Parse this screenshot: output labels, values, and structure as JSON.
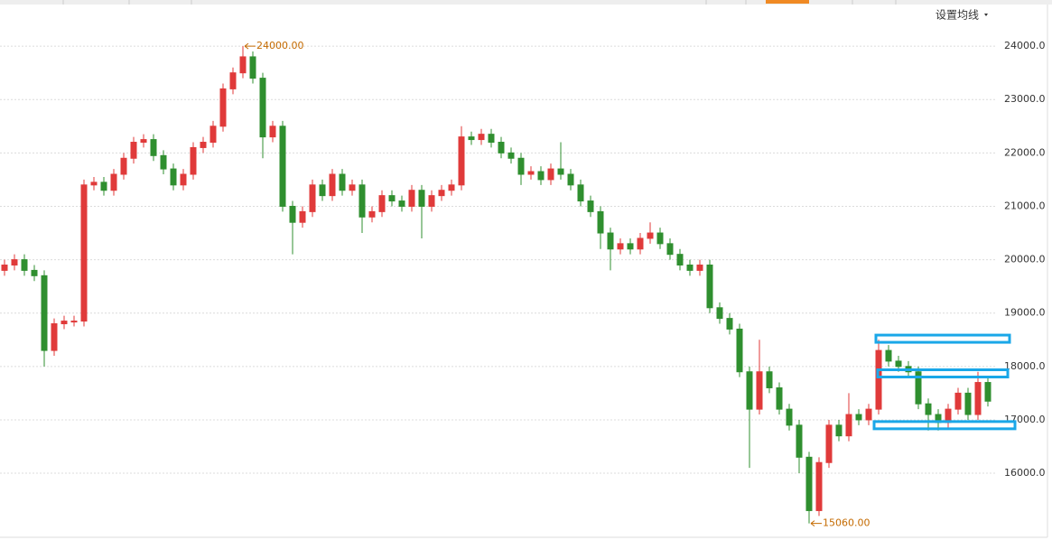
{
  "chart_data": {
    "type": "candlestick",
    "menu_label": "设置均线",
    "open": [
      19800,
      19900,
      20000,
      19800,
      19700,
      18300,
      18800,
      18850,
      18850,
      21400,
      21450,
      21300,
      21600,
      21900,
      22200,
      22250,
      21950,
      21700,
      21400,
      21600,
      22100,
      22200,
      22500,
      23200,
      23500,
      23800,
      23400,
      22300,
      22500,
      21000,
      20700,
      20900,
      21400,
      21200,
      21600,
      21300,
      21400,
      20800,
      20900,
      21200,
      21100,
      21000,
      21300,
      21000,
      21200,
      21300,
      21400,
      22300,
      22250,
      22350,
      22200,
      22000,
      21900,
      21600,
      21650,
      21500,
      21700,
      21600,
      21400,
      21100,
      20900,
      20500,
      20200,
      20300,
      20200,
      20400,
      20500,
      20300,
      20100,
      19900,
      19800,
      19900,
      19100,
      18900,
      18700,
      17900,
      17200,
      17900,
      17600,
      17200,
      16900,
      16300,
      15300,
      16200,
      16900,
      16700,
      17100,
      17000,
      17200,
      18300,
      18100,
      18000,
      17900,
      17300,
      17100,
      16950,
      17200,
      17500,
      17100,
      17700
    ],
    "high": [
      20000,
      20100,
      20100,
      19900,
      19800,
      18900,
      18950,
      18950,
      21500,
      21550,
      21550,
      21700,
      22000,
      22300,
      22350,
      22350,
      22050,
      21800,
      21700,
      22200,
      22300,
      22600,
      23300,
      23600,
      24000,
      23900,
      23500,
      22600,
      22600,
      21100,
      21000,
      21500,
      21500,
      21700,
      21700,
      21500,
      21500,
      21000,
      21300,
      21300,
      21200,
      21400,
      21400,
      21300,
      21400,
      21500,
      22500,
      22400,
      22450,
      22450,
      22300,
      22100,
      22000,
      21750,
      21750,
      21800,
      22200,
      21700,
      21500,
      21200,
      21000,
      20600,
      20400,
      20400,
      20500,
      20700,
      20600,
      20400,
      20200,
      20000,
      20000,
      20000,
      19200,
      19000,
      18800,
      18000,
      18500,
      18000,
      17700,
      17300,
      17000,
      16400,
      16300,
      17000,
      17000,
      17500,
      17200,
      17300,
      18500,
      18400,
      18200,
      18100,
      18000,
      17400,
      17200,
      17300,
      17600,
      17600,
      17900,
      17800
    ],
    "low": [
      19700,
      19800,
      19700,
      19600,
      18000,
      18200,
      18700,
      18750,
      18750,
      21300,
      21200,
      21200,
      21500,
      21800,
      22100,
      21850,
      21600,
      21300,
      21300,
      21500,
      22000,
      22100,
      22400,
      23100,
      23400,
      23300,
      21900,
      22200,
      20900,
      20100,
      20600,
      20800,
      21100,
      21100,
      21200,
      21200,
      20500,
      20700,
      20800,
      21000,
      20900,
      20900,
      20400,
      20900,
      21100,
      21200,
      21300,
      22150,
      22150,
      22100,
      21900,
      21800,
      21400,
      21500,
      21400,
      21400,
      21500,
      21300,
      21000,
      20800,
      20200,
      19800,
      20100,
      20100,
      20100,
      20300,
      20200,
      20000,
      19800,
      19700,
      19700,
      19000,
      18800,
      18600,
      17800,
      16100,
      17100,
      17500,
      17100,
      16800,
      16000,
      15060,
      15200,
      16100,
      16600,
      16600,
      16900,
      16900,
      17100,
      18000,
      17900,
      17800,
      17200,
      16800,
      16800,
      16850,
      17100,
      17000,
      17000,
      17250
    ],
    "close": [
      19900,
      20000,
      19800,
      19700,
      18300,
      18800,
      18850,
      18850,
      21400,
      21450,
      21300,
      21600,
      21900,
      22200,
      22250,
      21950,
      21700,
      21400,
      21600,
      22100,
      22200,
      22500,
      23200,
      23500,
      23800,
      23400,
      22300,
      22500,
      21000,
      20700,
      20900,
      21400,
      21200,
      21600,
      21300,
      21400,
      20800,
      20900,
      21200,
      21100,
      21000,
      21300,
      21000,
      21200,
      21300,
      21400,
      22300,
      22250,
      22350,
      22200,
      22000,
      21900,
      21600,
      21650,
      21500,
      21700,
      21600,
      21400,
      21100,
      20900,
      20500,
      20200,
      20300,
      20200,
      20400,
      20500,
      20300,
      20100,
      19900,
      19800,
      19900,
      19100,
      18900,
      18700,
      17900,
      17200,
      17900,
      17600,
      17200,
      16900,
      16300,
      15300,
      16200,
      16900,
      16700,
      17100,
      17000,
      17200,
      18300,
      18100,
      18000,
      17900,
      17300,
      17100,
      16950,
      17200,
      17500,
      17100,
      17700,
      17350
    ],
    "up_color": "#e03a3a",
    "down_color": "#2f8f2f",
    "ylim": [
      14800,
      24780
    ],
    "yticks": [
      {
        "value": 16000,
        "label": "16000.0"
      },
      {
        "value": 17000,
        "label": "17000.0"
      },
      {
        "value": 18000,
        "label": "18000.0"
      },
      {
        "value": 19000,
        "label": "19000.0"
      },
      {
        "value": 20000,
        "label": "20000.0"
      },
      {
        "value": 21000,
        "label": "21000.0"
      },
      {
        "value": 22000,
        "label": "22000.0"
      },
      {
        "value": 23000,
        "label": "23000.0"
      },
      {
        "value": 24000,
        "label": "24000.0"
      }
    ],
    "grid": true,
    "annotations": [
      {
        "label": "24000.00",
        "value": 24000
      },
      {
        "label": "15060.00",
        "value": 15060
      }
    ],
    "highlight_levels": [
      18520,
      17870,
      16900
    ],
    "highlight_color": "#1aa7e8"
  }
}
